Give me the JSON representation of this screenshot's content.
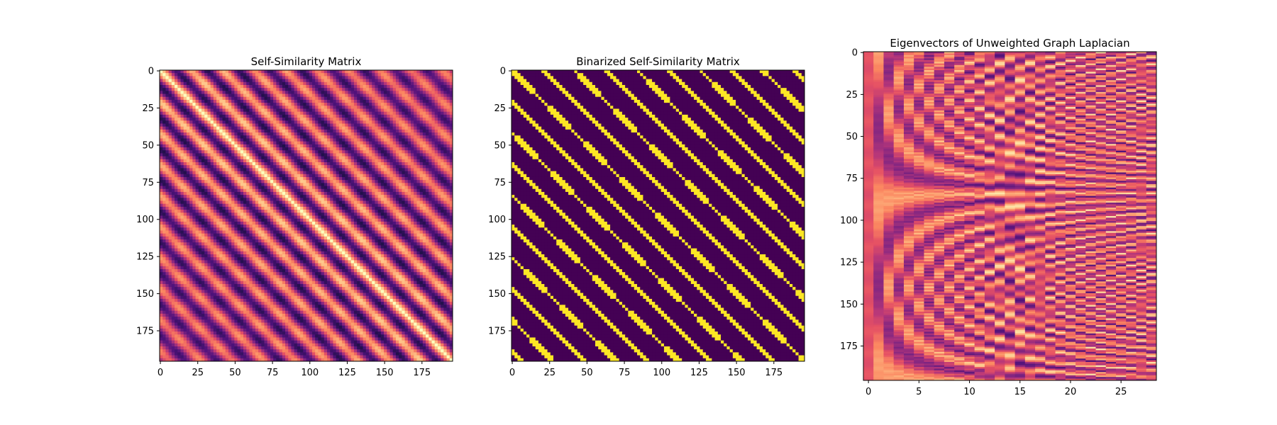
{
  "figure": {
    "colors": {
      "background": "#ffffff",
      "text": "#000000"
    }
  },
  "chart_data": [
    {
      "type": "heatmap",
      "title": "Self-Similarity Matrix",
      "colormap": "magma",
      "n_rows": 196,
      "n_cols": 196,
      "xlim": [
        0,
        195
      ],
      "ylim": [
        0,
        195
      ],
      "y_inverted": true,
      "x_ticks": [
        0,
        25,
        50,
        75,
        100,
        125,
        150,
        175
      ],
      "y_ticks": [
        0,
        25,
        50,
        75,
        100,
        125,
        150,
        175
      ],
      "x_tick_labels": [
        "0",
        "25",
        "50",
        "75",
        "100",
        "125",
        "150",
        "175"
      ],
      "y_tick_labels": [
        "0",
        "25",
        "50",
        "75",
        "100",
        "125",
        "150",
        "175"
      ],
      "pattern": "diagonal stripes; main diagonal maximum (bright yellow), bright bands repeating about every 21 samples off-diagonal, dark (black) valleys between",
      "stripe_period": 21
    },
    {
      "type": "heatmap",
      "title": "Binarized Self-Similarity Matrix",
      "colormap": "viridis",
      "n_rows": 196,
      "n_cols": 196,
      "xlim": [
        0,
        195
      ],
      "ylim": [
        0,
        195
      ],
      "y_inverted": true,
      "values": [
        0,
        1
      ],
      "x_ticks": [
        0,
        25,
        50,
        75,
        100,
        125,
        150,
        175
      ],
      "y_ticks": [
        0,
        25,
        50,
        75,
        100,
        125,
        150,
        175
      ],
      "x_tick_labels": [
        "0",
        "25",
        "50",
        "75",
        "100",
        "125",
        "150",
        "175"
      ],
      "y_tick_labels": [
        "0",
        "25",
        "50",
        "75",
        "100",
        "125",
        "150",
        "175"
      ],
      "pattern": "binary (0 = dark purple, 1 = yellow) diagonal bands parallel to the main diagonal, about every 21 samples",
      "stripe_period": 21
    },
    {
      "type": "heatmap",
      "title": "Eigenvectors of Unweighted Graph Laplacian",
      "colormap": "magma",
      "n_rows": 196,
      "n_cols": 29,
      "xlim": [
        0,
        28
      ],
      "ylim": [
        0,
        195
      ],
      "y_inverted": true,
      "x_ticks": [
        0,
        5,
        10,
        15,
        20,
        25
      ],
      "y_ticks": [
        0,
        25,
        50,
        75,
        100,
        125,
        150,
        175
      ],
      "x_tick_labels": [
        "0",
        "5",
        "10",
        "15",
        "20",
        "25"
      ],
      "y_tick_labels": [
        "0",
        "25",
        "50",
        "75",
        "100",
        "125",
        "150",
        "175"
      ],
      "pattern": "columns = eigenvectors; low-index columns vary smoothly along rows, higher-index columns increasingly oscillatory"
    }
  ]
}
